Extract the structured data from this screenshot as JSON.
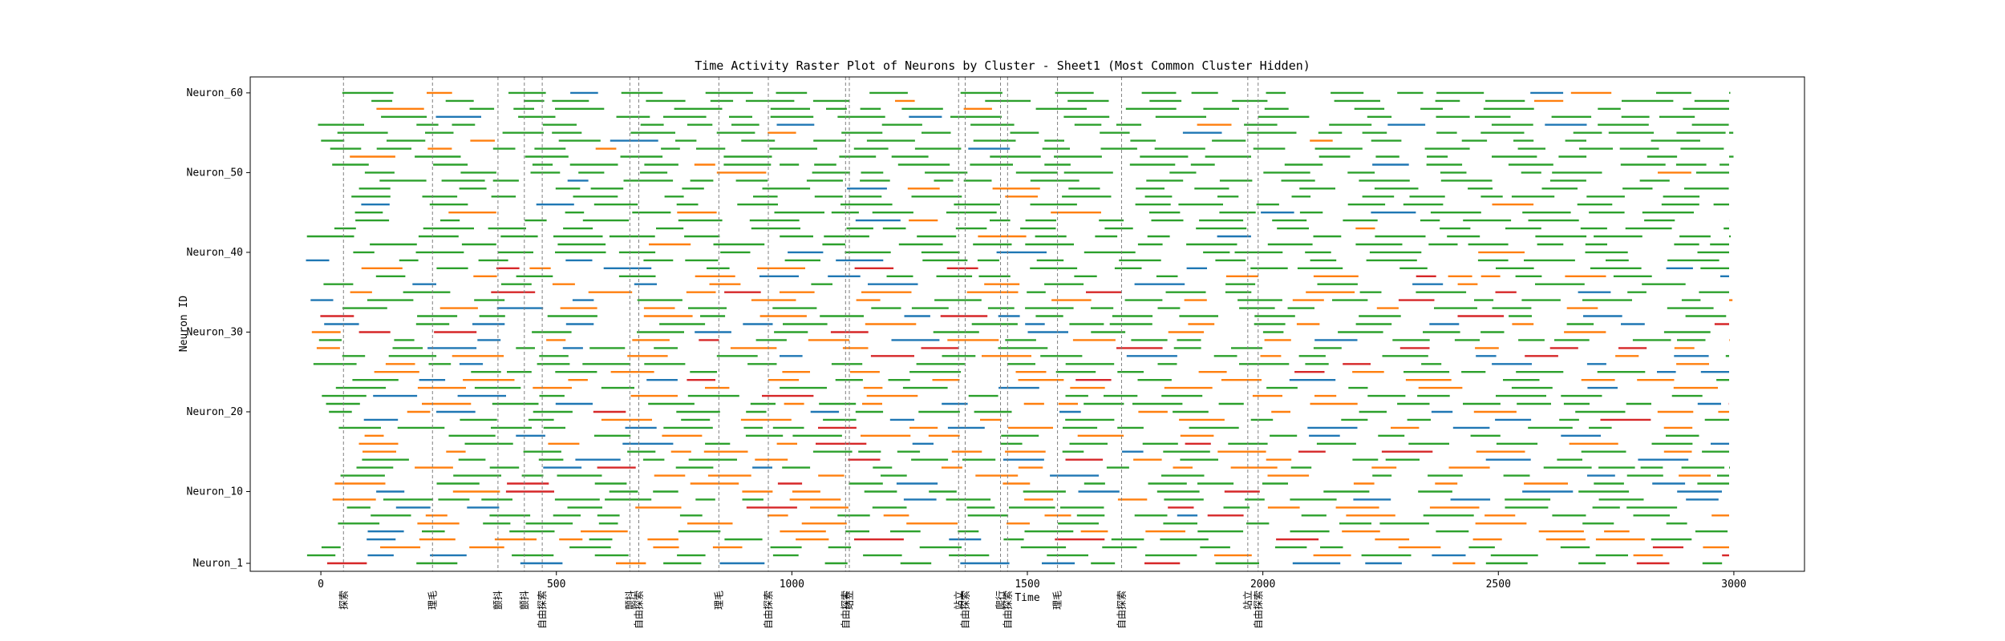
{
  "chart_data": {
    "type": "raster",
    "title": "Time Activity Raster Plot of Neurons by Cluster - Sheet1 (Most Common Cluster Hidden)",
    "xlabel": "Time",
    "ylabel": "Neuron ID",
    "xlim": [
      -150,
      3150
    ],
    "ylim": [
      0,
      62
    ],
    "x_ticks": [
      0,
      500,
      1000,
      1500,
      2000,
      2500,
      3000
    ],
    "y_ticks": [
      {
        "label": "Neuron_1",
        "value": 1
      },
      {
        "label": "Neuron_10",
        "value": 10
      },
      {
        "label": "Neuron_20",
        "value": 20
      },
      {
        "label": "Neuron_30",
        "value": 30
      },
      {
        "label": "Neuron_40",
        "value": 40
      },
      {
        "label": "Neuron_50",
        "value": 50
      },
      {
        "label": "Neuron_60",
        "value": 60
      }
    ],
    "cluster_colors": [
      "#2ca02c",
      "#ff7f0e",
      "#1f77b4",
      "#d62728"
    ],
    "events": [
      {
        "time": 48,
        "label": "探索"
      },
      {
        "time": 237,
        "label": "理毛"
      },
      {
        "time": 376,
        "label": "颤抖"
      },
      {
        "time": 432,
        "label": "颤抖"
      },
      {
        "time": 470,
        "label": "自由探索"
      },
      {
        "time": 656,
        "label": "颤抖"
      },
      {
        "time": 675,
        "label": "自由探索"
      },
      {
        "time": 845,
        "label": "理毛"
      },
      {
        "time": 950,
        "label": "自由探索"
      },
      {
        "time": 1114,
        "label": "自由探索"
      },
      {
        "time": 1122,
        "label": "站立"
      },
      {
        "time": 1354,
        "label": "站立"
      },
      {
        "time": 1368,
        "label": "自由探索"
      },
      {
        "time": 1443,
        "label": "爬行"
      },
      {
        "time": 1458,
        "label": "自由探索"
      },
      {
        "time": 1564,
        "label": "理毛"
      },
      {
        "time": 1700,
        "label": "自由探索"
      },
      {
        "time": 1968,
        "label": "站立"
      },
      {
        "time": 1990,
        "label": "自由探索"
      }
    ],
    "segment_length": 100,
    "legend": "none",
    "grid": false
  }
}
